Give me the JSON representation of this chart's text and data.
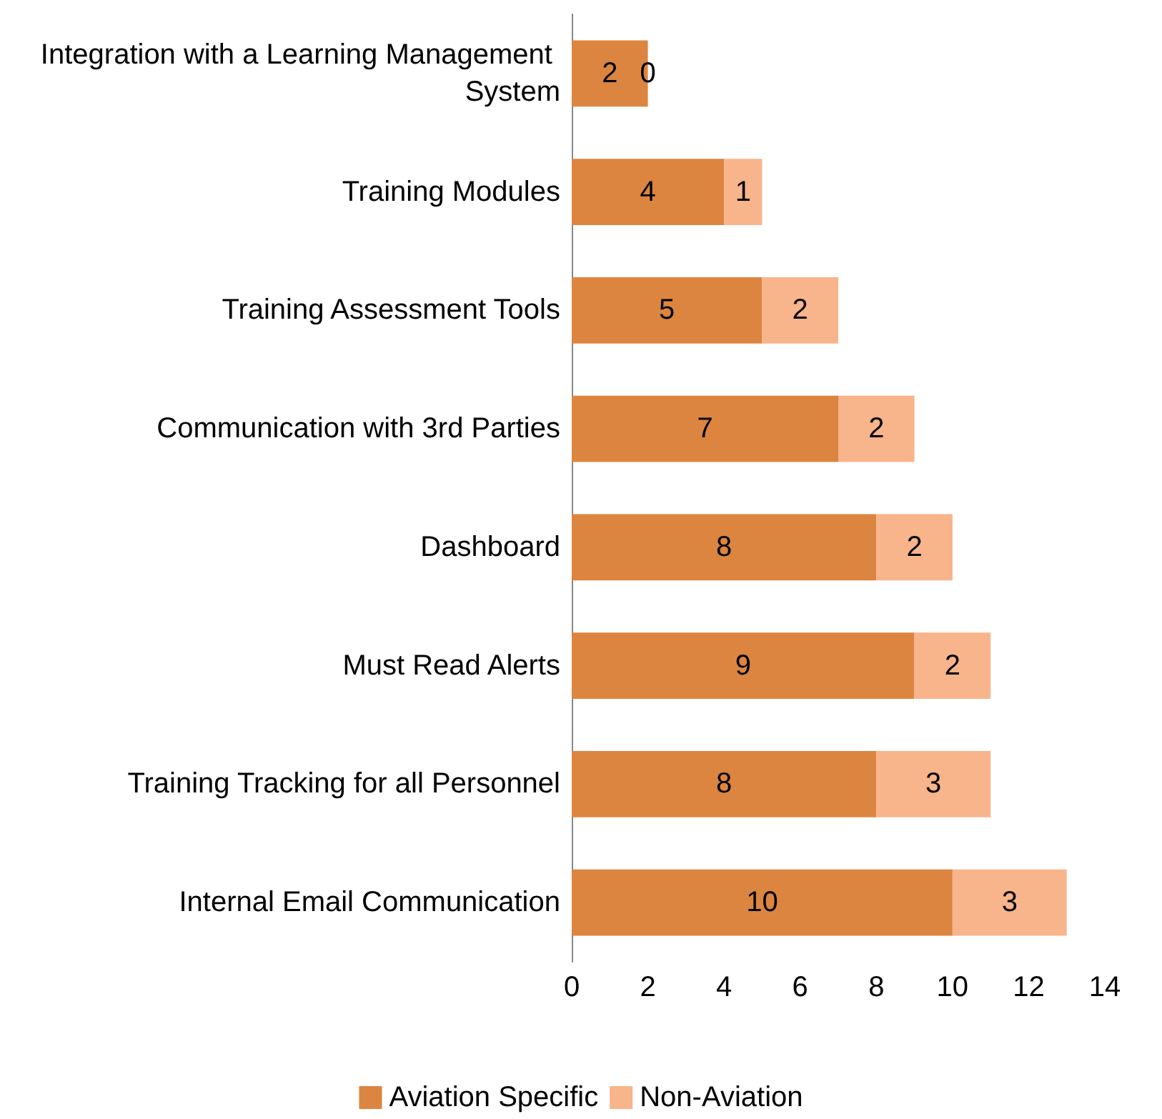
{
  "chart_data": {
    "type": "bar",
    "orientation": "horizontal",
    "stacked": true,
    "categories": [
      "Integration with a Learning Management System",
      "Training Modules",
      "Training Assessment Tools",
      "Communication with 3rd Parties",
      "Dashboard",
      "Must Read Alerts",
      "Training Tracking for all Personnel",
      "Internal Email Communication"
    ],
    "series": [
      {
        "name": "Aviation Specific",
        "color": "#dc8540",
        "values": [
          2,
          4,
          5,
          7,
          8,
          9,
          8,
          10
        ]
      },
      {
        "name": "Non-Aviation",
        "color": "#f8b48a",
        "values": [
          0,
          1,
          2,
          2,
          2,
          2,
          3,
          3
        ]
      }
    ],
    "xlim": [
      0,
      14
    ],
    "xticks": [
      0,
      2,
      4,
      6,
      8,
      10,
      12,
      14
    ],
    "data_labels": true,
    "grid": false,
    "legend": "bottom"
  }
}
